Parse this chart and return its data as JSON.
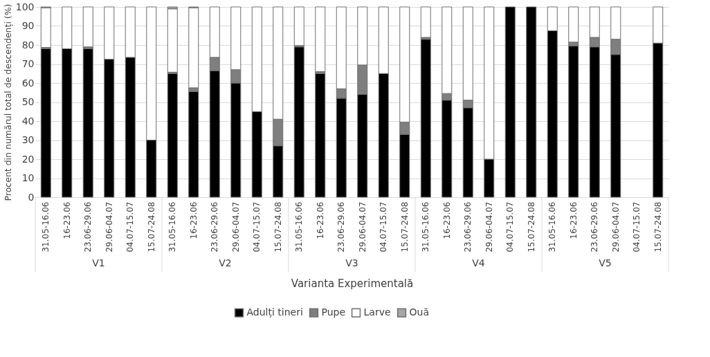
{
  "chart_data": {
    "type": "bar",
    "stacked": true,
    "xlabel": "Varianta Experimentală",
    "ylabel": "Procent din numărul total de descendenți (%)",
    "categories": [
      "31.05-16.06",
      "16-23.06",
      "23.06-29.06",
      "29.06-04.07",
      "04.07-15.07",
      "15.07-24.08",
      "31.05-16.06",
      "16-23.06",
      "23.06-29.06",
      "29.06-04.07",
      "04.07-15.07",
      "15.07-24.08",
      "31.05-16.06",
      "16-23.06",
      "23.06-29.06",
      "29.06-04.07",
      "04.07-15.07",
      "15.07-24.08",
      "31.05-16.06",
      "16-23.06",
      "23.06-29.06",
      "29.06-04.07",
      "04.07-15.07",
      "15.07-24.08",
      "31.05-16.06",
      "16-23.06",
      "23.06-29.06",
      "29.06-04.07",
      "04.07-15.07",
      "15.07-24.08"
    ],
    "annotations": [
      "V1",
      "V2",
      "V3",
      "V4",
      "V5"
    ],
    "series": [
      {
        "name": "Adulți tineri",
        "color": "#000000",
        "values": [
          78,
          78,
          78,
          72.5,
          73.5,
          30,
          65,
          55.5,
          66.5,
          60,
          45,
          27,
          79,
          65,
          52,
          54,
          65,
          33,
          83,
          51,
          47,
          20,
          100,
          100,
          87.5,
          79.5,
          79,
          75,
          null,
          81
        ]
      },
      {
        "name": "Pupe",
        "color": "#7f7f7f",
        "values": [
          0.7,
          0,
          1,
          0,
          0,
          0,
          0.7,
          2,
          7,
          7,
          0,
          14,
          0.7,
          1,
          5,
          15.5,
          0,
          6.5,
          1,
          3.5,
          4,
          0,
          0,
          0,
          0,
          2,
          5,
          8,
          null,
          0
        ]
      },
      {
        "name": "Larve",
        "color": "#ffffff",
        "values": [
          20.8,
          22,
          21,
          27.5,
          26.5,
          70,
          33.3,
          42,
          26.5,
          33,
          55,
          59,
          20.3,
          34,
          43,
          30.5,
          35,
          60.5,
          16,
          45.5,
          49,
          80,
          0,
          0,
          12.5,
          18.5,
          16,
          17,
          null,
          19
        ]
      },
      {
        "name": "Ouă",
        "color": "#a6a6a6",
        "values": [
          0.5,
          0,
          0,
          0,
          0,
          0,
          1,
          0.5,
          0,
          0,
          0,
          0,
          0,
          0,
          0,
          0,
          0,
          0,
          0,
          0,
          0,
          0,
          0,
          0,
          0,
          0,
          0,
          0,
          null,
          0
        ]
      }
    ],
    "ylim": [
      0,
      100
    ],
    "yticks": [
      0,
      10,
      20,
      30,
      40,
      50,
      60,
      70,
      80,
      90,
      100
    ],
    "grid": "y",
    "legend": "bottom"
  }
}
